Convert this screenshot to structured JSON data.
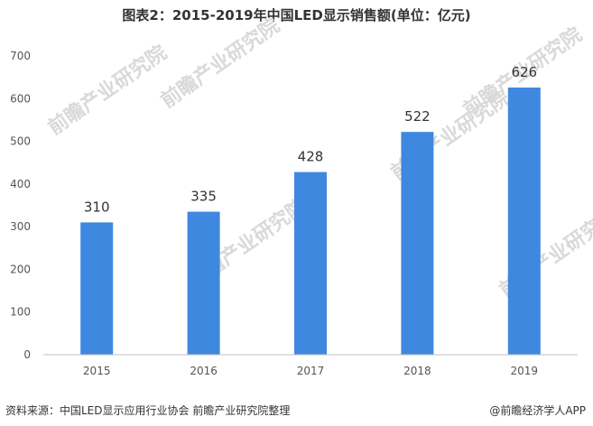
{
  "chart_data": {
    "type": "bar",
    "title": "图表2：2015-2019年中国LED显示销售额(单位：亿元)",
    "categories": [
      "2015",
      "2016",
      "2017",
      "2018",
      "2019"
    ],
    "values": [
      310,
      335,
      428,
      522,
      626
    ],
    "data_labels": [
      "310",
      "335",
      "428",
      "522",
      "626"
    ],
    "ylim": [
      0,
      700
    ],
    "yticks": [
      "0",
      "100",
      "200",
      "300",
      "400",
      "500",
      "600",
      "700"
    ],
    "grid": false,
    "legend": "none",
    "bar_color": "#3f88e0"
  },
  "footer": {
    "source": "资料来源：中国LED显示应用行业协会 前瞻产业研究院整理",
    "brand": "@前瞻经济学人APP"
  },
  "watermark": "前瞻产业研究院"
}
